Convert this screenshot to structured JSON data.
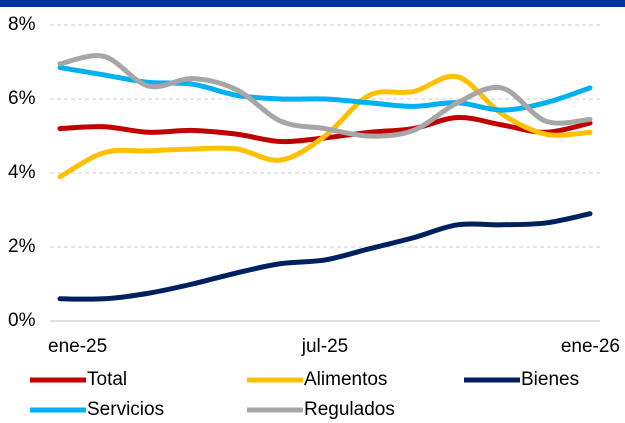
{
  "chart_data": {
    "type": "line",
    "categories": [
      "ene-25",
      null,
      null,
      null,
      null,
      null,
      "jul-25",
      null,
      null,
      null,
      null,
      null,
      "ene-26"
    ],
    "series": [
      {
        "name": "Total",
        "color": "#c00000",
        "values": [
          5.2,
          5.25,
          5.1,
          5.15,
          5.05,
          4.85,
          4.95,
          5.1,
          5.2,
          5.5,
          5.3,
          5.1,
          5.35
        ]
      },
      {
        "name": "Alimentos",
        "color": "#ffc000",
        "values": [
          3.9,
          4.55,
          4.6,
          4.65,
          4.65,
          4.35,
          5.0,
          6.1,
          6.2,
          6.6,
          5.6,
          5.05,
          5.1
        ]
      },
      {
        "name": "Bienes",
        "color": "#002060",
        "values": [
          0.6,
          0.6,
          0.75,
          1.0,
          1.3,
          1.55,
          1.65,
          1.95,
          2.25,
          2.6,
          2.6,
          2.65,
          2.9
        ]
      },
      {
        "name": "Servicios",
        "color": "#00b0f0",
        "values": [
          6.85,
          6.65,
          6.45,
          6.4,
          6.1,
          6.0,
          6.0,
          5.9,
          5.8,
          5.9,
          5.7,
          5.9,
          6.3
        ]
      },
      {
        "name": "Regulados",
        "color": "#a6a6a6",
        "values": [
          6.95,
          7.15,
          6.35,
          6.55,
          6.25,
          5.4,
          5.2,
          5.0,
          5.15,
          5.9,
          6.3,
          5.4,
          5.45
        ]
      }
    ],
    "ylim": [
      0,
      8
    ],
    "yticks": [
      {
        "value": 0,
        "label": "0%"
      },
      {
        "value": 2,
        "label": "2%"
      },
      {
        "value": 4,
        "label": "4%"
      },
      {
        "value": 6,
        "label": "6%"
      },
      {
        "value": 8,
        "label": "8%"
      }
    ],
    "grid": true
  }
}
